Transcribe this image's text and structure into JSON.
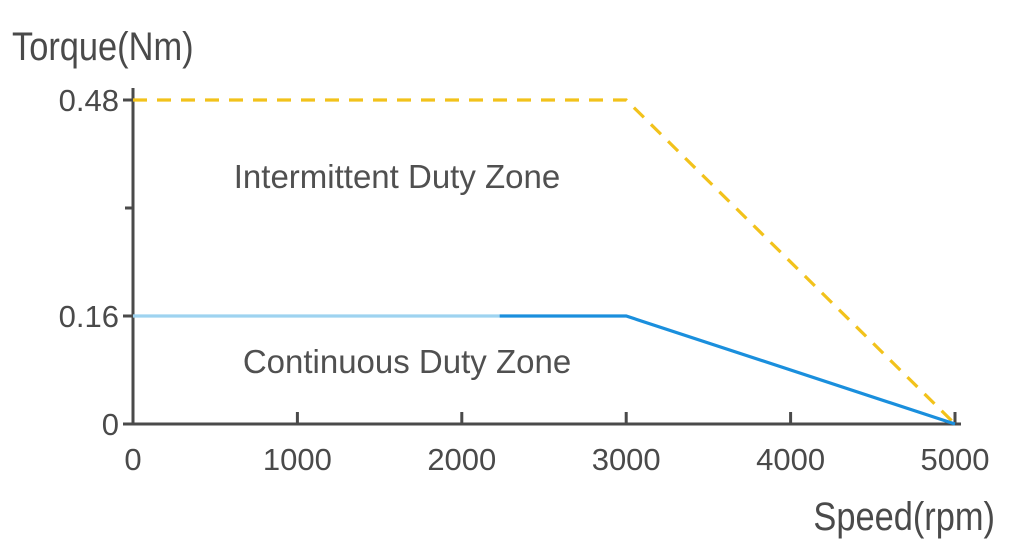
{
  "chart_data": {
    "type": "line",
    "title": "",
    "xlabel": "Speed(rpm)",
    "ylabel": "Torque(Nm)",
    "xlim": [
      0,
      5000
    ],
    "ylim": [
      0,
      0.48
    ],
    "x_ticks": [
      0,
      1000,
      2000,
      3000,
      4000,
      5000
    ],
    "x_tick_labels": [
      "0",
      "1000",
      "2000",
      "3000",
      "4000",
      "5000"
    ],
    "y_ticks": [
      0,
      0.16,
      0.48
    ],
    "y_tick_labels": [
      "0",
      "0.16",
      "0.48"
    ],
    "grid": false,
    "legend": "none",
    "series": [
      {
        "style": "dashed",
        "color": "#f2c21b",
        "x": [
          0,
          3000,
          5000
        ],
        "y": [
          0.48,
          0.48,
          0
        ]
      },
      {
        "style": "solid",
        "color": "#1a8fdd",
        "x": [
          0,
          3000,
          5000
        ],
        "y": [
          0.16,
          0.16,
          0
        ]
      }
    ],
    "annotations": [
      {
        "text": "Intermittent Duty Zone",
        "x": 1600,
        "y": 0.37
      },
      {
        "text": "Continuous Duty Zone",
        "x": 1600,
        "y": 0.085
      }
    ],
    "colors": {
      "axis": "#4a4a4a",
      "continuous_light": "#9ed3f0"
    }
  }
}
